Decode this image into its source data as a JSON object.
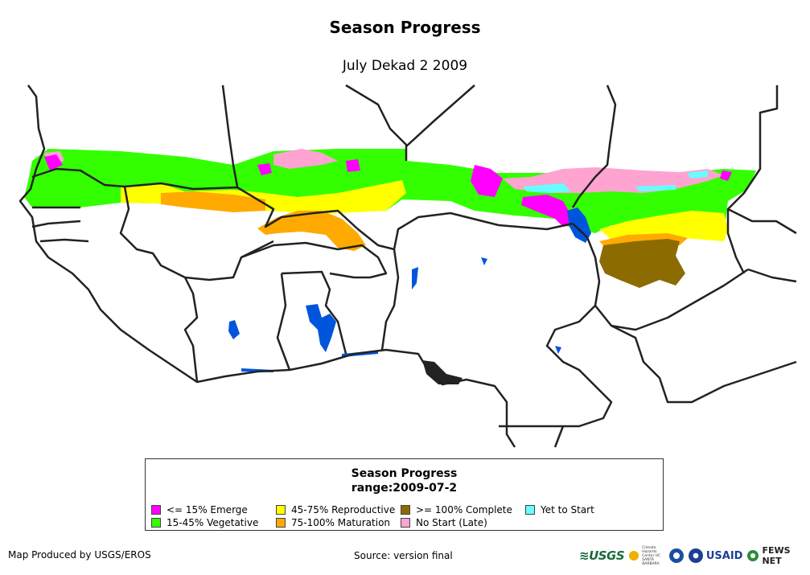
{
  "title": "Season Progress",
  "subtitle": "July Dekad 2 2009",
  "legend": {
    "title": "Season Progress",
    "range_label": "range:2009-07-2",
    "items": [
      {
        "label": "<= 15% Emerge",
        "color": "#ff00ff"
      },
      {
        "label": "45-75% Reproductive",
        "color": "#ffff00"
      },
      {
        "label": ">= 100% Complete",
        "color": "#8c6b00"
      },
      {
        "label": "Yet to Start",
        "color": "#66ffff"
      },
      {
        "label": "15-45% Vegetative",
        "color": "#33ff00"
      },
      {
        "label": "75-100% Maturation",
        "color": "#ffaa00"
      },
      {
        "label": "No Start (Late)",
        "color": "#ffa3d1"
      }
    ]
  },
  "map": {
    "water_color": "#0055dd",
    "border_color": "#222222"
  },
  "footer": {
    "producer": "Map Produced by USGS/EROS",
    "source": "Source: version final",
    "logos": {
      "usgs": "USGS",
      "chc": "Climate Hazards Center UC SANTA BARBARA",
      "usaid": "USAID",
      "fews": "FEWS NET"
    }
  }
}
